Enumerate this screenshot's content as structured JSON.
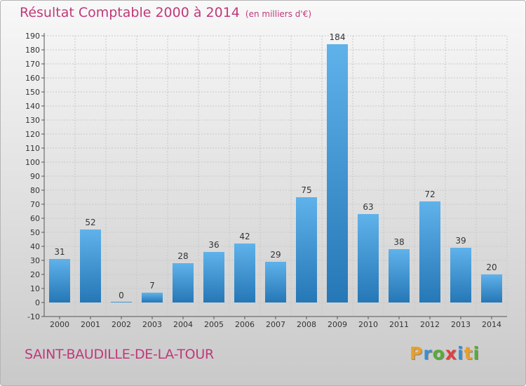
{
  "title": "Résultat Comptable 2000 à 2014",
  "subtitle": "(en milliers d'€)",
  "commune": "SAINT-BAUDILLE-DE-LA-TOUR",
  "logo": {
    "text": "Proxiti",
    "letters": [
      {
        "ch": "P",
        "color": "#e8a02a"
      },
      {
        "ch": "r",
        "color": "#3a8fd0"
      },
      {
        "ch": "o",
        "color": "#5aaa3a"
      },
      {
        "ch": "x",
        "color": "#e04040"
      },
      {
        "ch": "i",
        "color": "#3a8fd0"
      },
      {
        "ch": "t",
        "color": "#e8a02a"
      },
      {
        "ch": "i",
        "color": "#5aaa3a"
      }
    ]
  },
  "colors": {
    "text_accent": "#c0387a",
    "bar_light": "#5fb2ea",
    "bar_dark": "#2577b6",
    "grid": "#c8c8c8",
    "axis": "#555555"
  },
  "chart_data": {
    "type": "bar",
    "categories": [
      "2000",
      "2001",
      "2002",
      "2003",
      "2004",
      "2005",
      "2006",
      "2007",
      "2008",
      "2009",
      "2010",
      "2011",
      "2012",
      "2013",
      "2014"
    ],
    "values": [
      31,
      52,
      0,
      7,
      28,
      36,
      42,
      29,
      75,
      184,
      63,
      38,
      72,
      39,
      20
    ],
    "ylim": [
      -10,
      190
    ],
    "yticks": [
      -10,
      0,
      10,
      20,
      30,
      40,
      50,
      60,
      70,
      80,
      90,
      100,
      110,
      120,
      130,
      140,
      150,
      160,
      170,
      180,
      190
    ],
    "grid": true,
    "data_labels": true
  }
}
